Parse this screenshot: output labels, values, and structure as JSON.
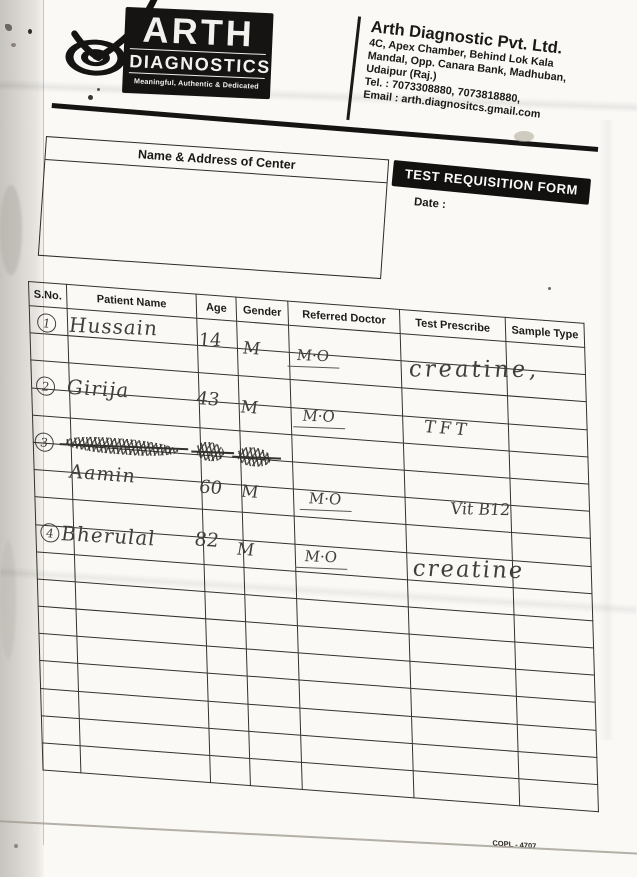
{
  "document": {
    "logo": {
      "brand": "ARTH",
      "division": "DIAGNOSTICS",
      "tagline": "Meaningful, Authentic & Dedicated"
    },
    "company": {
      "name": "Arth Diagnostic Pvt. Ltd.",
      "address_lines": [
        "4C, Apex Chamber, Behind Lok Kala",
        "Mandal, Opp. Canara Bank, Madhuban,",
        "Udaipur (Raj.)"
      ],
      "tel": "Tel. : 7073308880, 7073818880,",
      "email": "Email : arth.diagnositcs.gmail.com"
    },
    "center_box_title": "Name & Address of Center",
    "form_title": "TEST REQUISITION FORM",
    "date_label": "Date :",
    "date_value": "",
    "footer_code": "COPL - 4707"
  },
  "table": {
    "headers": [
      "S.No.",
      "Patient Name",
      "Age",
      "Gender",
      "Referred Doctor",
      "Test Prescribe",
      "Sample Type"
    ],
    "row_count": 17,
    "entries": [
      {
        "sno": "1",
        "patient_name": "Hussain",
        "age": "14",
        "gender": "M",
        "referred_doctor": "M·O",
        "test_prescribe": "creatine,",
        "sample_type": ""
      },
      {
        "sno": "2",
        "patient_name": "Girija",
        "age": "43",
        "gender": "M",
        "referred_doctor": "M·O",
        "test_prescribe": "TFT",
        "sample_type": ""
      },
      {
        "sno": "3",
        "patient_name": "Aamin",
        "age": "60",
        "gender": "M",
        "referred_doctor": "M·O",
        "test_prescribe": "Vit B12",
        "sample_type": "",
        "struck_out_fields": [
          "patient_name",
          "age",
          "gender"
        ]
      },
      {
        "sno": "4",
        "patient_name": "Bherulal",
        "age": "82",
        "gender": "M",
        "referred_doctor": "M·O",
        "test_prescribe": "creatine",
        "sample_type": ""
      }
    ]
  },
  "colors": {
    "print_black": "#161412",
    "handwriting_ink": "#413f3c",
    "paper": "#faf9f6"
  }
}
